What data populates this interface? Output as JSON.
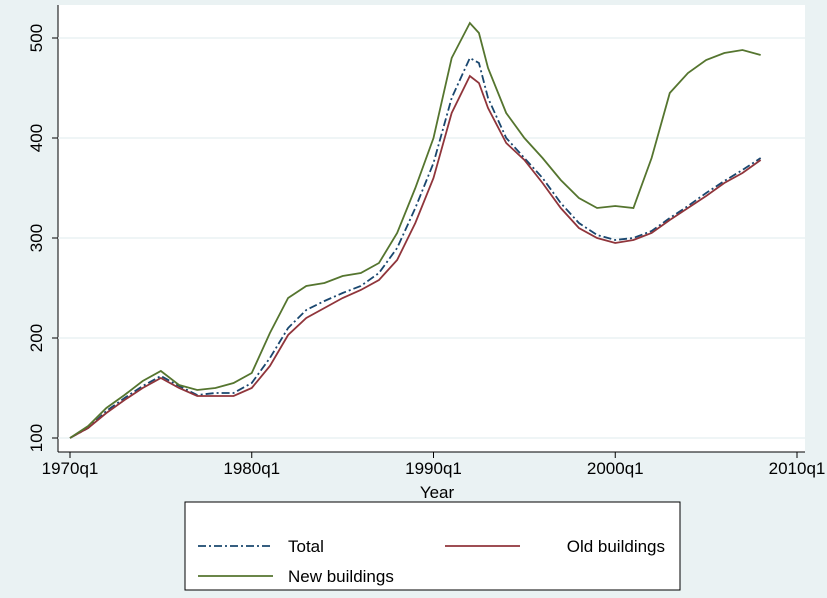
{
  "chart_data": {
    "type": "line",
    "x_label": "Year",
    "x": [
      1970,
      1971,
      1972,
      1973,
      1974,
      1975,
      1976,
      1977,
      1978,
      1979,
      1980,
      1981,
      1982,
      1983,
      1984,
      1985,
      1986,
      1987,
      1988,
      1989,
      1990,
      1991,
      1992,
      1992.5,
      1993,
      1994,
      1995,
      1996,
      1997,
      1998,
      1999,
      2000,
      2001,
      2002,
      2003,
      2004,
      2005,
      2006,
      2007,
      2008
    ],
    "series": [
      {
        "name": "Total",
        "color": "#1a476f",
        "dash": "8,3,2,3",
        "values": [
          100,
          110,
          127,
          140,
          152,
          162,
          152,
          143,
          145,
          145,
          155,
          180,
          210,
          228,
          237,
          245,
          252,
          265,
          290,
          330,
          375,
          440,
          480,
          475,
          440,
          400,
          380,
          360,
          335,
          315,
          303,
          298,
          300,
          307,
          320,
          332,
          345,
          357,
          368,
          380
        ]
      },
      {
        "name": "Old buildings",
        "color": "#90353b",
        "values": [
          100,
          110,
          125,
          138,
          150,
          160,
          150,
          142,
          142,
          142,
          150,
          172,
          203,
          220,
          230,
          240,
          248,
          258,
          278,
          315,
          360,
          425,
          462,
          455,
          430,
          395,
          378,
          355,
          330,
          310,
          300,
          295,
          298,
          305,
          318,
          330,
          342,
          355,
          365,
          378
        ]
      },
      {
        "name": "New buildings",
        "color": "#55752f",
        "values": [
          100,
          112,
          130,
          143,
          157,
          167,
          153,
          148,
          150,
          155,
          165,
          205,
          240,
          252,
          255,
          262,
          265,
          275,
          305,
          350,
          400,
          480,
          515,
          505,
          470,
          425,
          400,
          380,
          358,
          340,
          330,
          332,
          330,
          380,
          445,
          465,
          478,
          485,
          488,
          483
        ]
      }
    ],
    "xlim": [
      1969.34,
      2010.44
    ],
    "xticks": [
      {
        "value": 1970,
        "label": "1970q1"
      },
      {
        "value": 1980,
        "label": "1980q1"
      },
      {
        "value": 1990,
        "label": "1990q1"
      },
      {
        "value": 2000,
        "label": "2000q1"
      },
      {
        "value": 2010,
        "label": "2010q1"
      }
    ],
    "ylim": [
      86,
      533
    ],
    "yticks": [
      100,
      200,
      300,
      400,
      500
    ],
    "grid": true
  }
}
